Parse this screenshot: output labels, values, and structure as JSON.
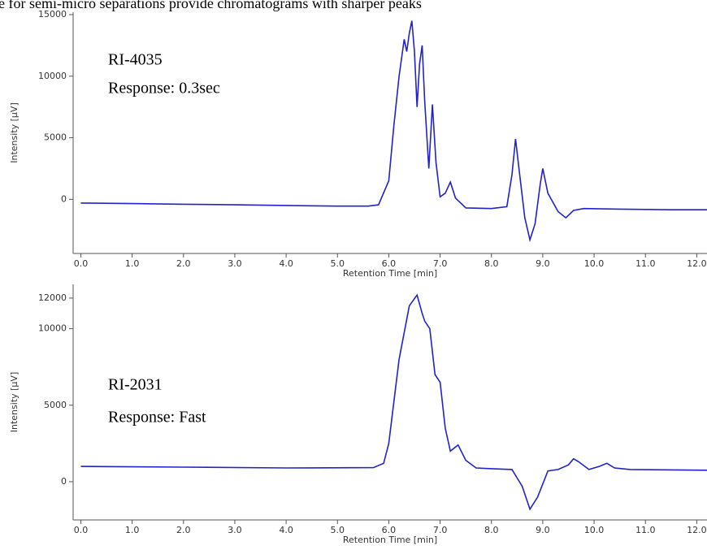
{
  "caption": "e for semi-micro separations provide chromatograms with sharper peaks",
  "chart_data": [
    {
      "type": "line",
      "annotations": [
        "RI-4035",
        "Response: 0.3sec"
      ],
      "x_label": "Retention Time [min]",
      "y_label": "Intensity [µV]",
      "x": [
        0,
        1,
        2,
        3,
        4,
        5,
        5.6,
        5.8,
        6.0,
        6.1,
        6.2,
        6.3,
        6.35,
        6.4,
        6.45,
        6.5,
        6.55,
        6.6,
        6.65,
        6.7,
        6.78,
        6.85,
        6.92,
        7.0,
        7.1,
        7.2,
        7.3,
        7.5,
        8.0,
        8.3,
        8.4,
        8.47,
        8.55,
        8.65,
        8.75,
        8.85,
        8.95,
        9.0,
        9.1,
        9.3,
        9.45,
        9.6,
        9.8,
        10.5,
        11.5,
        12.2
      ],
      "series": [
        {
          "color": "#2222cc",
          "values": [
            -300,
            -350,
            -400,
            -450,
            -500,
            -550,
            -550,
            -450,
            1500,
            6000,
            10000,
            13000,
            12000,
            13500,
            14500,
            12000,
            7500,
            11000,
            12500,
            8000,
            2500,
            7700,
            3000,
            200,
            500,
            1400,
            100,
            -700,
            -750,
            -600,
            2000,
            4900,
            2000,
            -1500,
            -3300,
            -2000,
            1200,
            2500,
            500,
            -1000,
            -1500,
            -900,
            -750,
            -800,
            -850,
            -850
          ]
        }
      ],
      "xlim": [
        -0.15,
        12.2
      ],
      "ylim": [
        -4400,
        15200
      ],
      "xticks": [
        {
          "value": 0,
          "label": "0.0"
        },
        {
          "value": 1,
          "label": "1.0"
        },
        {
          "value": 2,
          "label": "2.0"
        },
        {
          "value": 3,
          "label": "3.0"
        },
        {
          "value": 4,
          "label": "4.0"
        },
        {
          "value": 5,
          "label": "5.0"
        },
        {
          "value": 6,
          "label": "6.0"
        },
        {
          "value": 7,
          "label": "7.0"
        },
        {
          "value": 8,
          "label": "8.0"
        },
        {
          "value": 9,
          "label": "9.0"
        },
        {
          "value": 10,
          "label": "10.0"
        },
        {
          "value": 11,
          "label": "11.0"
        },
        {
          "value": 12,
          "label": "12.0"
        }
      ],
      "yticks": [
        0,
        5000,
        10000,
        15000
      ]
    },
    {
      "type": "line",
      "annotations": [
        "RI-2031",
        "Response: Fast"
      ],
      "x_label": "Retention Time [min]",
      "y_label": "Intensity [µV]",
      "x": [
        0,
        2,
        4,
        5.7,
        5.9,
        6.0,
        6.2,
        6.4,
        6.55,
        6.65,
        6.7,
        6.8,
        6.9,
        7.0,
        7.1,
        7.2,
        7.35,
        7.5,
        7.7,
        8.0,
        8.4,
        8.6,
        8.75,
        8.9,
        9.1,
        9.3,
        9.5,
        9.6,
        9.7,
        9.9,
        10.1,
        10.25,
        10.4,
        10.7,
        12.2
      ],
      "series": [
        {
          "color": "#2222cc",
          "values": [
            1000,
            950,
            900,
            920,
            1200,
            2500,
            8000,
            11500,
            12200,
            11000,
            10500,
            10000,
            7000,
            6500,
            3500,
            2000,
            2400,
            1400,
            900,
            850,
            800,
            -300,
            -1800,
            -1000,
            700,
            800,
            1100,
            1500,
            1300,
            800,
            1000,
            1200,
            900,
            800,
            750
          ]
        }
      ],
      "xlim": [
        -0.15,
        12.2
      ],
      "ylim": [
        -2500,
        12900
      ],
      "xticks": [
        {
          "value": 0,
          "label": "0.0"
        },
        {
          "value": 1,
          "label": "1.0"
        },
        {
          "value": 2,
          "label": "2.0"
        },
        {
          "value": 3,
          "label": "3.0"
        },
        {
          "value": 4,
          "label": "4.0"
        },
        {
          "value": 5,
          "label": "5.0"
        },
        {
          "value": 6,
          "label": "6.0"
        },
        {
          "value": 7,
          "label": "7.0"
        },
        {
          "value": 8,
          "label": "8.0"
        },
        {
          "value": 9,
          "label": "9.0"
        },
        {
          "value": 10,
          "label": "10.0"
        },
        {
          "value": 11,
          "label": "11.0"
        },
        {
          "value": 12,
          "label": "12.0"
        }
      ],
      "yticks": [
        0,
        5000,
        10000,
        12000
      ]
    }
  ]
}
